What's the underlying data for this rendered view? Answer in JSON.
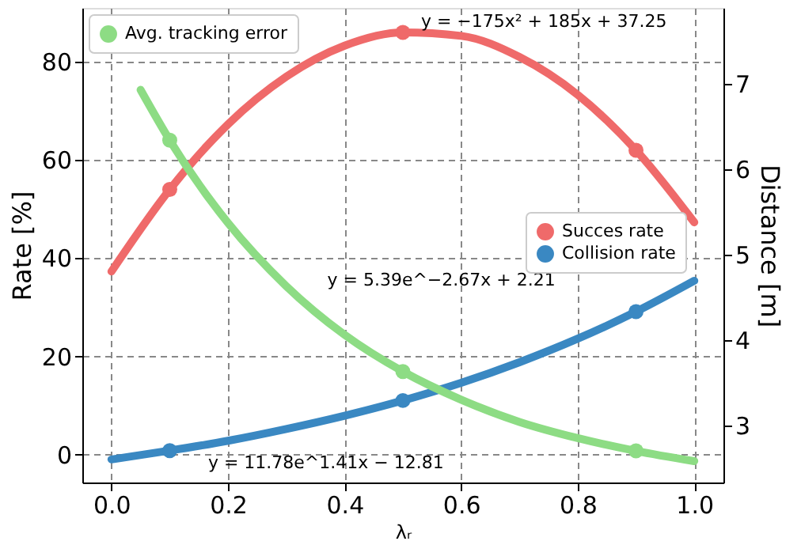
{
  "chart_data": {
    "type": "line",
    "xlabel": "λᵣ",
    "ylabel": "Rate [%]",
    "y2label": "Distance [m]",
    "xlim": [
      -0.05,
      1.05
    ],
    "xticks": [
      {
        "value": 0,
        "label": "0.0"
      },
      {
        "value": 0.2,
        "label": "0.2"
      },
      {
        "value": 0.4,
        "label": "0.4"
      },
      {
        "value": 0.6,
        "label": "0.6"
      },
      {
        "value": 0.8,
        "label": "0.8"
      },
      {
        "value": 1,
        "label": "1.0"
      }
    ],
    "ylim": [
      -5.7,
      91
    ],
    "yticks": [
      0,
      20,
      40,
      60,
      80
    ],
    "y2lim": [
      2.33,
      7.89
    ],
    "y2ticks": [
      3,
      4,
      5,
      6,
      7
    ],
    "grid": true,
    "legend": "right",
    "line_style": "solid",
    "series": [
      {
        "color": "#ef6a6a",
        "x": [
          0,
          0.1,
          0.2,
          0.3,
          0.4,
          0.5,
          0.6,
          0.7,
          0.8,
          0.9,
          1
        ],
        "values": [
          37.3,
          54,
          67.3,
          77,
          83.3,
          86,
          85.3,
          81,
          73.3,
          62,
          47.3
        ]
      },
      {
        "type": "scatter",
        "name": "Succes rate",
        "color": "#ef6a6a",
        "marker": "circle",
        "x": [
          0.1,
          0.5,
          0.9
        ],
        "values": [
          54,
          86,
          62
        ]
      },
      {
        "color": "#3a88c2",
        "x": [
          0,
          0.1,
          0.2,
          0.3,
          0.4,
          0.5,
          0.6,
          0.7,
          0.8,
          0.9,
          1
        ],
        "values": [
          -1,
          0.8,
          2.8,
          5.2,
          7.9,
          11,
          14.6,
          18.8,
          23.6,
          29.1,
          35.4
        ]
      },
      {
        "type": "scatter",
        "name": "Collision rate",
        "color": "#3a88c2",
        "marker": "circle",
        "x": [
          0.1,
          0.5,
          0.9
        ],
        "values": [
          0.8,
          11,
          29.1
        ]
      },
      {
        "axis": "y2",
        "color": "#8ddc84",
        "x": [
          0.05,
          0.1,
          0.2,
          0.3,
          0.4,
          0.5,
          0.6,
          0.7,
          0.8,
          0.9,
          1
        ],
        "values": [
          6.93,
          6.34,
          5.37,
          4.63,
          4.06,
          3.63,
          3.3,
          3.04,
          2.85,
          2.7,
          2.58
        ]
      },
      {
        "type": "scatter",
        "name": "Avg. tracking error",
        "axis": "y2",
        "color": "#8ddc84",
        "marker": "circle",
        "x": [
          0.1,
          0.5,
          0.9
        ],
        "values": [
          6.34,
          3.63,
          2.7
        ]
      }
    ],
    "annotations": [
      "y = −175x² + 185x + 37.25",
      "y = 5.39e^−2.67x + 2.21",
      "y = 11.78e^1.41x − 12.81"
    ]
  }
}
